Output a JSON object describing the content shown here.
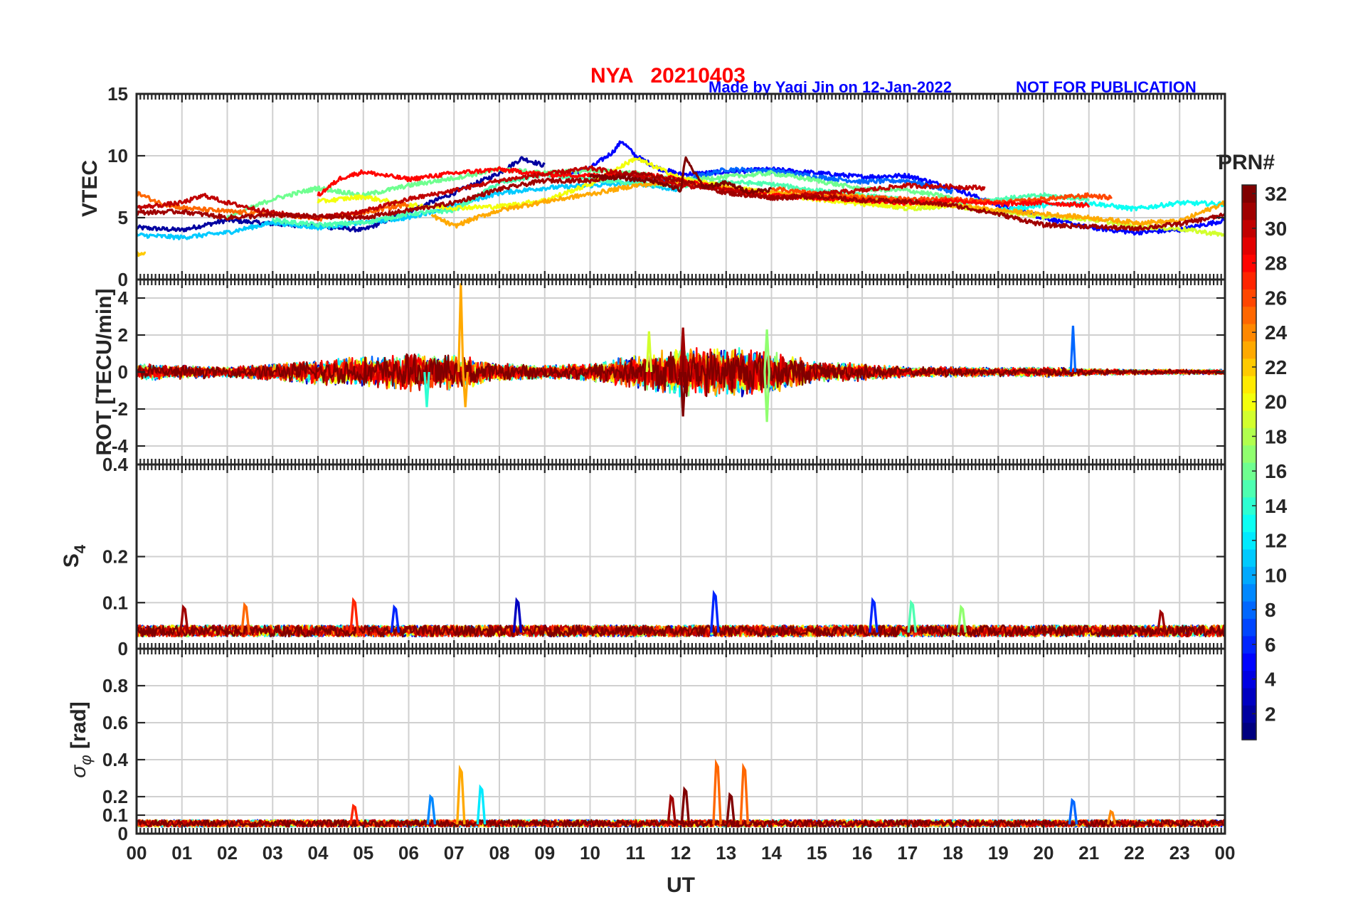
{
  "header": {
    "station_date": "NYA   20210403",
    "credit": "Made by Yaqi Jin on 12-Jan-2022",
    "notice": "NOT FOR PUBLICATION"
  },
  "colors": {
    "title_red": "#ff0000",
    "title_blue": "#0000ff",
    "axis": "#262626",
    "grid": "#d0d0d0"
  },
  "chart_data": {
    "type": "line",
    "x_label": "UT",
    "x_range": [
      0,
      24
    ],
    "x_tick_labels": [
      "00",
      "01",
      "02",
      "03",
      "04",
      "05",
      "06",
      "07",
      "08",
      "09",
      "10",
      "11",
      "12",
      "13",
      "14",
      "15",
      "16",
      "17",
      "18",
      "19",
      "20",
      "21",
      "22",
      "23",
      "00"
    ],
    "colormap": "jet",
    "colorbar": {
      "title": "PRN#",
      "range": [
        1,
        32
      ],
      "tick_labels": [
        "2",
        "4",
        "6",
        "8",
        "10",
        "12",
        "14",
        "16",
        "18",
        "20",
        "22",
        "24",
        "26",
        "28",
        "30",
        "32"
      ]
    },
    "panels": [
      {
        "id": "vtec",
        "ylabel": "VTEC",
        "ylim": [
          0,
          15
        ],
        "y_ticks": [
          0,
          5,
          10,
          15
        ],
        "y_tick_labels": [
          "0",
          "5",
          "10",
          "15"
        ],
        "series": [
          {
            "prn": 2,
            "t": [
              0,
              1,
              2,
              3,
              4,
              5,
              6,
              7,
              8,
              8.5,
              9
            ],
            "v": [
              4.2,
              4.0,
              4.8,
              4.5,
              4.3,
              4.0,
              5.5,
              7.0,
              8.6,
              9.8,
              9.2
            ]
          },
          {
            "prn": 5,
            "t": [
              9.5,
              10,
              10.5,
              10.7,
              11,
              11.5,
              12,
              13,
              14,
              15,
              16,
              17,
              18,
              19,
              20,
              21,
              22,
              23,
              24
            ],
            "v": [
              8.5,
              9.0,
              10.3,
              11.2,
              10.0,
              9.0,
              8.5,
              8.7,
              8.9,
              8.6,
              8.3,
              8.4,
              7.4,
              6.0,
              5.0,
              4.2,
              3.8,
              4.0,
              4.8
            ]
          },
          {
            "prn": 8,
            "t": [
              11,
              12,
              13,
              14,
              15,
              16,
              17,
              18
            ],
            "v": [
              8.2,
              8.0,
              8.9,
              8.8,
              8.3,
              7.9,
              8.0,
              7.1
            ]
          },
          {
            "prn": 11,
            "t": [
              0,
              1,
              2,
              3,
              4,
              5,
              6,
              7,
              8,
              9,
              10,
              11,
              12
            ],
            "v": [
              3.6,
              3.4,
              3.8,
              4.6,
              4.2,
              4.6,
              5.0,
              6.0,
              7.0,
              7.4,
              7.6,
              7.8,
              7.2
            ]
          },
          {
            "prn": 13,
            "t": [
              19,
              20,
              21,
              22,
              23,
              24
            ],
            "v": [
              5.6,
              6.0,
              6.2,
              5.7,
              6.2,
              6.1
            ]
          },
          {
            "prn": 15,
            "t": [
              3,
              4,
              5,
              6,
              7,
              8,
              9,
              10,
              11,
              12,
              13,
              14,
              15,
              16,
              17,
              18,
              19,
              20,
              21
            ],
            "v": [
              4.8,
              4.4,
              4.6,
              5.3,
              5.6,
              7.8,
              8.5,
              8.1,
              7.8,
              7.5,
              7.9,
              7.7,
              7.2,
              6.8,
              6.4,
              6.2,
              6.5,
              6.8,
              6.5
            ]
          },
          {
            "prn": 16,
            "t": [
              2,
              3,
              4,
              5,
              6,
              7,
              8,
              9,
              10,
              11,
              12,
              13,
              14,
              15,
              16,
              17,
              18
            ],
            "v": [
              5.0,
              6.5,
              7.4,
              6.8,
              7.6,
              8.2,
              8.9,
              8.6,
              8.8,
              8.6,
              8.0,
              8.3,
              8.6,
              8.0,
              7.3,
              7.2,
              6.6
            ]
          },
          {
            "prn": 19,
            "t": [
              13,
              14,
              15,
              16,
              17,
              18,
              19,
              20,
              21,
              22,
              23,
              24
            ],
            "v": [
              7.4,
              7.0,
              6.7,
              6.3,
              5.7,
              6.0,
              5.4,
              5.1,
              4.9,
              4.3,
              4.1,
              3.6
            ]
          },
          {
            "prn": 20,
            "t": [
              4,
              5,
              6,
              7,
              8,
              9,
              10,
              11,
              12,
              13,
              14,
              15,
              16,
              17,
              18,
              19
            ],
            "v": [
              6.3,
              6.7,
              6.0,
              5.8,
              5.9,
              6.4,
              7.7,
              9.8,
              8.2,
              7.5,
              7.0,
              6.5,
              6.1,
              5.9,
              6.0,
              5.5
            ]
          },
          {
            "prn": 22,
            "t": [
              0,
              0.2
            ],
            "v": [
              2.1,
              2.0
            ]
          },
          {
            "prn": 23,
            "t": [
              6.5,
              7,
              7.5,
              8,
              9,
              10,
              11,
              12,
              13,
              14,
              15,
              16,
              17,
              18,
              19,
              20,
              21,
              22,
              23,
              24
            ],
            "v": [
              5.2,
              4.3,
              5.0,
              5.6,
              6.3,
              6.9,
              7.6,
              7.9,
              7.4,
              7.0,
              6.8,
              6.7,
              6.3,
              6.0,
              5.6,
              5.3,
              5.0,
              4.6,
              4.7,
              6.2
            ]
          },
          {
            "prn": 25,
            "t": [
              0,
              0.5,
              1,
              2,
              3,
              4,
              5,
              6
            ],
            "v": [
              7.0,
              6.2,
              5.8,
              5.5,
              5.3,
              4.9,
              5.4,
              6.1
            ]
          },
          {
            "prn": 26,
            "t": [
              14,
              15,
              16,
              17,
              18,
              19,
              20,
              21,
              21.5
            ],
            "v": [
              7.4,
              6.9,
              6.6,
              6.5,
              6.5,
              6.2,
              6.5,
              6.8,
              6.6
            ]
          },
          {
            "prn": 28,
            "t": [
              4,
              4.5,
              5,
              6,
              7,
              8,
              9,
              10,
              11,
              12,
              13,
              14,
              15,
              16,
              17,
              18,
              19,
              20,
              21
            ],
            "v": [
              6.8,
              8.2,
              8.7,
              8.1,
              8.6,
              8.9,
              8.5,
              8.4,
              8.6,
              8.1,
              7.2,
              6.8,
              6.6,
              6.4,
              6.2,
              6.4,
              6.1,
              6.2,
              6.0
            ]
          },
          {
            "prn": 30,
            "t": [
              0,
              1,
              1.5,
              2,
              3,
              4,
              5,
              6,
              7,
              8,
              9,
              10,
              11,
              12,
              13,
              14,
              15,
              16,
              17,
              18,
              18.7
            ],
            "v": [
              5.8,
              6.2,
              6.8,
              6.2,
              5.4,
              5.0,
              5.5,
              6.5,
              7.2,
              8.0,
              8.5,
              9.0,
              8.4,
              7.6,
              7.3,
              6.6,
              6.9,
              7.2,
              7.6,
              7.5,
              7.4
            ]
          },
          {
            "prn": 31,
            "t": [
              0,
              1,
              2,
              3,
              4,
              5,
              6,
              7,
              8,
              9,
              10,
              11,
              12,
              13,
              14,
              15,
              16,
              17,
              18,
              19,
              20,
              21,
              22,
              23,
              24
            ],
            "v": [
              5.4,
              5.5,
              5.0,
              5.2,
              5.1,
              5.0,
              5.6,
              6.2,
              7.3,
              8.0,
              8.0,
              8.6,
              8.0,
              7.0,
              6.6,
              6.7,
              6.4,
              6.3,
              6.0,
              5.3,
              4.4,
              4.3,
              4.1,
              4.5,
              5.2
            ]
          },
          {
            "prn": 32,
            "t": [
              10,
              11,
              11.5,
              12,
              12.1,
              12.5,
              13,
              13.5,
              14
            ],
            "v": [
              8.4,
              8.1,
              7.9,
              7.2,
              9.8,
              7.5,
              7.8,
              7.1,
              7.3
            ]
          }
        ]
      },
      {
        "id": "rot",
        "ylabel": "ROT [TECU/min]",
        "ylim": [
          -5,
          5
        ],
        "y_ticks": [
          -4,
          -2,
          0,
          2,
          4
        ],
        "y_tick_labels": [
          "-4",
          "-2",
          "0",
          "2",
          "4"
        ],
        "envelope": {
          "t": [
            0,
            1,
            2,
            3,
            4,
            5,
            6,
            7,
            8,
            9,
            10,
            11,
            12,
            13,
            14,
            15,
            16,
            17,
            18,
            19,
            20,
            21,
            22,
            23,
            24
          ],
          "amp": [
            0.5,
            0.4,
            0.3,
            0.5,
            0.7,
            0.9,
            1.1,
            1.0,
            0.5,
            0.4,
            0.5,
            1.0,
            1.4,
            1.4,
            1.2,
            0.6,
            0.5,
            0.3,
            0.3,
            0.25,
            0.3,
            0.2,
            0.15,
            0.15,
            0.15
          ]
        },
        "spikes": [
          {
            "t": 7.15,
            "v": 4.8,
            "prn": 23
          },
          {
            "t": 7.25,
            "v": -1.9,
            "prn": 23
          },
          {
            "t": 12.05,
            "v": 2.4,
            "prn": 31
          },
          {
            "t": 12.05,
            "v": -2.4,
            "prn": 32
          },
          {
            "t": 13.9,
            "v": -2.7,
            "prn": 17
          },
          {
            "t": 13.9,
            "v": 2.3,
            "prn": 17
          },
          {
            "t": 20.65,
            "v": 2.5,
            "prn": 8
          },
          {
            "t": 6.4,
            "v": -1.9,
            "prn": 14
          },
          {
            "t": 11.3,
            "v": 2.2,
            "prn": 19
          }
        ]
      },
      {
        "id": "s4",
        "ylabel": "S4",
        "ylim": [
          0,
          0.4
        ],
        "y_ticks": [
          0,
          0.1,
          0.2,
          0.4
        ],
        "y_tick_labels": [
          "0",
          "0.1",
          "0.2",
          "0.4"
        ],
        "baseline": 0.035,
        "peaks": [
          {
            "t": 1.05,
            "v": 0.09,
            "prn": 31
          },
          {
            "t": 2.4,
            "v": 0.095,
            "prn": 25
          },
          {
            "t": 4.8,
            "v": 0.105,
            "prn": 27
          },
          {
            "t": 5.7,
            "v": 0.09,
            "prn": 6
          },
          {
            "t": 8.4,
            "v": 0.105,
            "prn": 3
          },
          {
            "t": 12.75,
            "v": 0.12,
            "prn": 6
          },
          {
            "t": 16.25,
            "v": 0.105,
            "prn": 6
          },
          {
            "t": 17.1,
            "v": 0.1,
            "prn": 15
          },
          {
            "t": 18.2,
            "v": 0.09,
            "prn": 17
          },
          {
            "t": 22.6,
            "v": 0.08,
            "prn": 31
          }
        ]
      },
      {
        "id": "sigma_phi",
        "ylabel": "σφ [rad]",
        "ylim": [
          0,
          1
        ],
        "y_ticks": [
          0,
          0.1,
          0.2,
          0.4,
          0.6,
          0.8
        ],
        "y_tick_labels": [
          "0",
          "0.1",
          "0.2",
          "0.4",
          "0.6",
          "0.8"
        ],
        "baseline": 0.05,
        "peaks": [
          {
            "t": 6.5,
            "v": 0.2,
            "prn": 9
          },
          {
            "t": 7.15,
            "v": 0.35,
            "prn": 23
          },
          {
            "t": 7.6,
            "v": 0.25,
            "prn": 12
          },
          {
            "t": 4.8,
            "v": 0.15,
            "prn": 27
          },
          {
            "t": 11.8,
            "v": 0.2,
            "prn": 31
          },
          {
            "t": 12.1,
            "v": 0.24,
            "prn": 32
          },
          {
            "t": 12.8,
            "v": 0.38,
            "prn": 25
          },
          {
            "t": 13.1,
            "v": 0.21,
            "prn": 32
          },
          {
            "t": 13.4,
            "v": 0.36,
            "prn": 25
          },
          {
            "t": 20.65,
            "v": 0.18,
            "prn": 8
          },
          {
            "t": 21.5,
            "v": 0.12,
            "prn": 24
          }
        ]
      }
    ]
  }
}
